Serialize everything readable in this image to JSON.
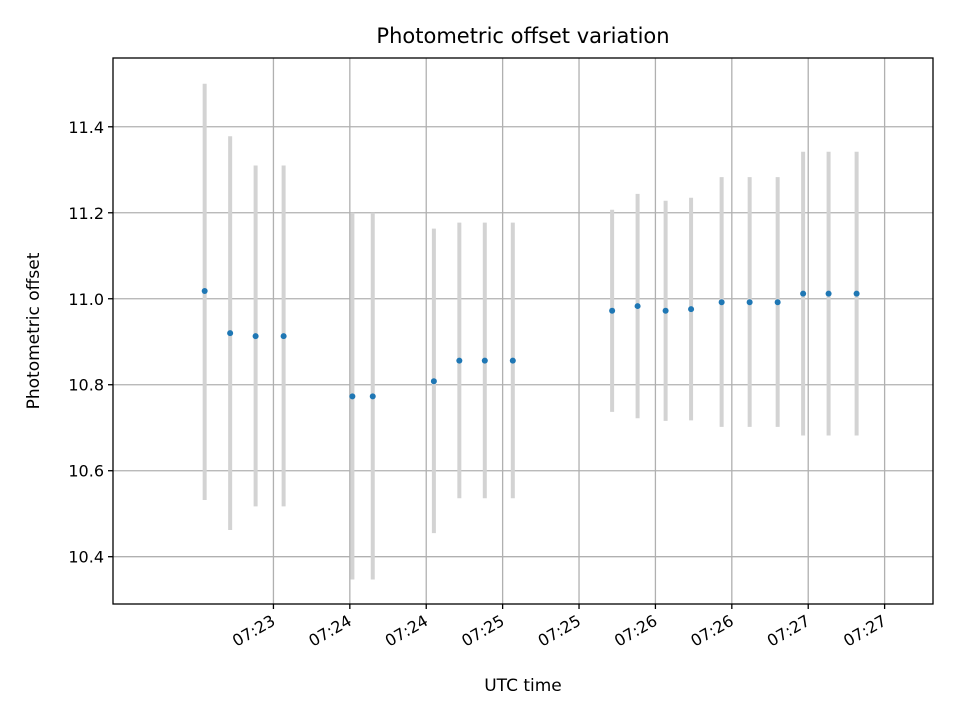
{
  "chart_data": {
    "type": "scatter",
    "title": "Photometric offset variation",
    "xlabel": "UTC time",
    "ylabel": "Photometric offset",
    "ylim": [
      10.29,
      11.56
    ],
    "y_ticks": [
      10.4,
      10.6,
      10.8,
      11.0,
      11.2,
      11.4
    ],
    "x_tick_labels": [
      "07:23",
      "07:24",
      "07:24",
      "07:25",
      "07:25",
      "07:26",
      "07:26",
      "07:27",
      "07:27"
    ],
    "x_tick_times": [
      "07:23:30",
      "07:24:00",
      "07:24:30",
      "07:25:00",
      "07:25:30",
      "07:26:00",
      "07:26:30",
      "07:27:00",
      "07:27:30"
    ],
    "xlim": [
      "07:22:27",
      "07:27:49"
    ],
    "grid": true,
    "point_color": "#1f77b4",
    "errorbar_color": "#d3d3d3",
    "series": [
      {
        "x": [
          "07:23:03",
          "07:23:13",
          "07:23:23",
          "07:23:34",
          "07:24:01",
          "07:24:09",
          "07:24:33",
          "07:24:43",
          "07:24:53",
          "07:25:04",
          "07:25:43",
          "07:25:53",
          "07:26:04",
          "07:26:14",
          "07:26:26",
          "07:26:37",
          "07:26:48",
          "07:26:58",
          "07:27:08",
          "07:27:19"
        ],
        "y": [
          11.018,
          10.92,
          10.913,
          10.913,
          10.773,
          10.773,
          10.808,
          10.856,
          10.856,
          10.856,
          10.972,
          10.983,
          10.972,
          10.976,
          10.992,
          10.992,
          10.992,
          11.012,
          11.012,
          11.012
        ],
        "yerr_low": [
          10.532,
          10.462,
          10.517,
          10.517,
          10.347,
          10.347,
          10.455,
          10.536,
          10.536,
          10.536,
          10.737,
          10.722,
          10.716,
          10.717,
          10.702,
          10.702,
          10.702,
          10.682,
          10.682,
          10.682
        ],
        "yerr_high": [
          11.5,
          11.378,
          11.31,
          11.31,
          11.2,
          11.2,
          11.163,
          11.177,
          11.177,
          11.177,
          11.207,
          11.244,
          11.228,
          11.235,
          11.283,
          11.283,
          11.283,
          11.342,
          11.342,
          11.342
        ]
      }
    ]
  }
}
